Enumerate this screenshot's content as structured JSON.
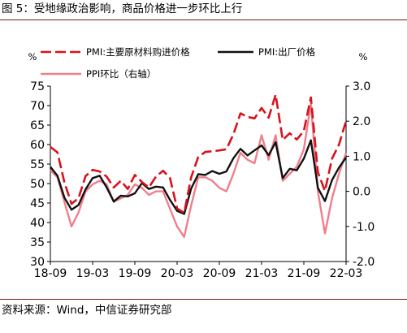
{
  "figure": {
    "title": "图 5：受地缘政治影响，商品价格进一步环比上行",
    "source": "资料来源：Wind，中信证券研究部"
  },
  "colors": {
    "pmi_main": "#d9111b",
    "pmi_out": "#111111",
    "ppi_mom": "#f07f8a",
    "rule": "#7a1a1a"
  },
  "chart_data": {
    "type": "line",
    "left_unit": "%",
    "right_unit": "%",
    "left_ylim": [
      30,
      75
    ],
    "left_ticks": [
      "30",
      "35",
      "40",
      "45",
      "50",
      "55",
      "60",
      "65",
      "70",
      "75"
    ],
    "right_ylim": [
      -2.0,
      3.0
    ],
    "right_ticks": [
      "-2.0",
      "-1.0",
      "0.0",
      "1.0",
      "2.0",
      "3.0"
    ],
    "x_ticks": [
      "18-09",
      "19-03",
      "19-09",
      "20-03",
      "20-09",
      "21-03",
      "21-09",
      "22-03"
    ],
    "legend": {
      "pmi_main": "PMI:主要原材料购进价格",
      "pmi_out": "PMI:出厂价格",
      "ppi_mom": "PPI环比（右轴）"
    },
    "months": [
      "2018-09",
      "2018-10",
      "2018-11",
      "2018-12",
      "2019-01",
      "2019-02",
      "2019-03",
      "2019-04",
      "2019-05",
      "2019-06",
      "2019-07",
      "2019-08",
      "2019-09",
      "2019-10",
      "2019-11",
      "2019-12",
      "2020-01",
      "2020-02",
      "2020-03",
      "2020-04",
      "2020-05",
      "2020-06",
      "2020-07",
      "2020-08",
      "2020-09",
      "2020-10",
      "2020-11",
      "2020-12",
      "2021-01",
      "2021-02",
      "2021-03",
      "2021-04",
      "2021-05",
      "2021-06",
      "2021-07",
      "2021-08",
      "2021-09",
      "2021-10",
      "2021-11",
      "2021-12",
      "2022-01",
      "2022-02",
      "2022-03"
    ],
    "series": [
      {
        "key": "pmi_main",
        "name": "PMI:主要原材料购进价格",
        "axis": "left",
        "values": [
          59.4,
          58.0,
          50.3,
          44.8,
          46.3,
          51.9,
          53.5,
          53.1,
          51.8,
          49.0,
          50.7,
          48.6,
          52.2,
          50.4,
          49.0,
          51.8,
          53.3,
          51.4,
          43.6,
          42.5,
          51.6,
          56.8,
          58.1,
          58.3,
          58.5,
          58.8,
          62.6,
          68.0,
          67.1,
          66.7,
          69.4,
          66.9,
          72.8,
          61.2,
          62.9,
          61.3,
          63.5,
          72.1,
          52.9,
          48.1,
          56.4,
          60.0,
          66.1
        ]
      },
      {
        "key": "pmi_out",
        "name": "PMI:出厂价格",
        "axis": "left",
        "values": [
          54.3,
          52.0,
          46.4,
          43.3,
          44.5,
          48.5,
          51.4,
          52.0,
          49.0,
          45.4,
          46.9,
          46.7,
          47.5,
          50.1,
          48.6,
          49.2,
          49.0,
          45.8,
          43.0,
          42.2,
          48.7,
          52.4,
          52.2,
          53.2,
          52.5,
          53.1,
          56.5,
          58.9,
          57.2,
          58.5,
          59.8,
          57.3,
          60.6,
          51.4,
          53.8,
          53.4,
          56.4,
          61.1,
          48.9,
          45.5,
          50.9,
          54.1,
          56.7
        ]
      },
      {
        "key": "ppi_mom",
        "name": "PPI环比（右轴）",
        "axis": "right",
        "values": [
          0.6,
          0.4,
          -0.3,
          -1.0,
          -0.6,
          0.0,
          0.2,
          0.3,
          0.2,
          -0.3,
          -0.2,
          -0.1,
          0.2,
          0.1,
          -0.1,
          0.0,
          0.0,
          -0.5,
          -1.0,
          -1.3,
          -0.4,
          0.4,
          0.4,
          0.3,
          0.1,
          0.0,
          0.5,
          1.1,
          0.9,
          0.8,
          1.6,
          0.9,
          1.6,
          0.3,
          0.5,
          0.7,
          1.2,
          2.5,
          0.0,
          -1.2,
          -0.2,
          0.5,
          1.1
        ]
      }
    ]
  }
}
